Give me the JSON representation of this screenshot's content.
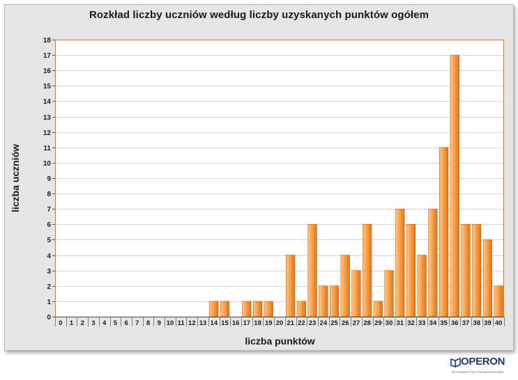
{
  "chart_data": {
    "type": "bar",
    "title": "Rozkład liczby uczniów według liczby uzyskanych punktów ogółem",
    "xlabel": "liczba punktów",
    "ylabel": "liczba uczniów",
    "categories": [
      "0",
      "1",
      "2",
      "3",
      "4",
      "5",
      "6",
      "7",
      "8",
      "9",
      "10",
      "11",
      "12",
      "13",
      "14",
      "15",
      "16",
      "17",
      "18",
      "19",
      "20",
      "21",
      "22",
      "23",
      "24",
      "25",
      "26",
      "27",
      "28",
      "29",
      "30",
      "31",
      "32",
      "33",
      "34",
      "35",
      "36",
      "37",
      "38",
      "39",
      "40"
    ],
    "values": [
      0,
      0,
      0,
      0,
      0,
      0,
      0,
      0,
      0,
      0,
      0,
      0,
      0,
      0,
      1,
      1,
      0,
      1,
      1,
      1,
      0,
      4,
      1,
      6,
      2,
      2,
      4,
      3,
      6,
      1,
      3,
      7,
      6,
      4,
      7,
      11,
      17,
      6,
      6,
      5,
      2
    ],
    "ylim": [
      0,
      18
    ],
    "yticks": [
      0,
      1,
      2,
      3,
      4,
      5,
      6,
      7,
      8,
      9,
      10,
      11,
      12,
      13,
      14,
      15,
      16,
      17,
      18
    ],
    "grid": true,
    "colors": {
      "bar_light": "#ffc98a",
      "bar_dark": "#e8720c",
      "bar_edge": "#c85f05",
      "plot_border": "#e0751b",
      "gridline": "#d4d4d4",
      "panel": "#e6e6e6"
    }
  },
  "logo": {
    "name": "OPERON",
    "tagline": "WYDAWNICTWO PEDAGOGICZNE",
    "icon": "operon-book-icon",
    "color": "#1f3a6b"
  }
}
